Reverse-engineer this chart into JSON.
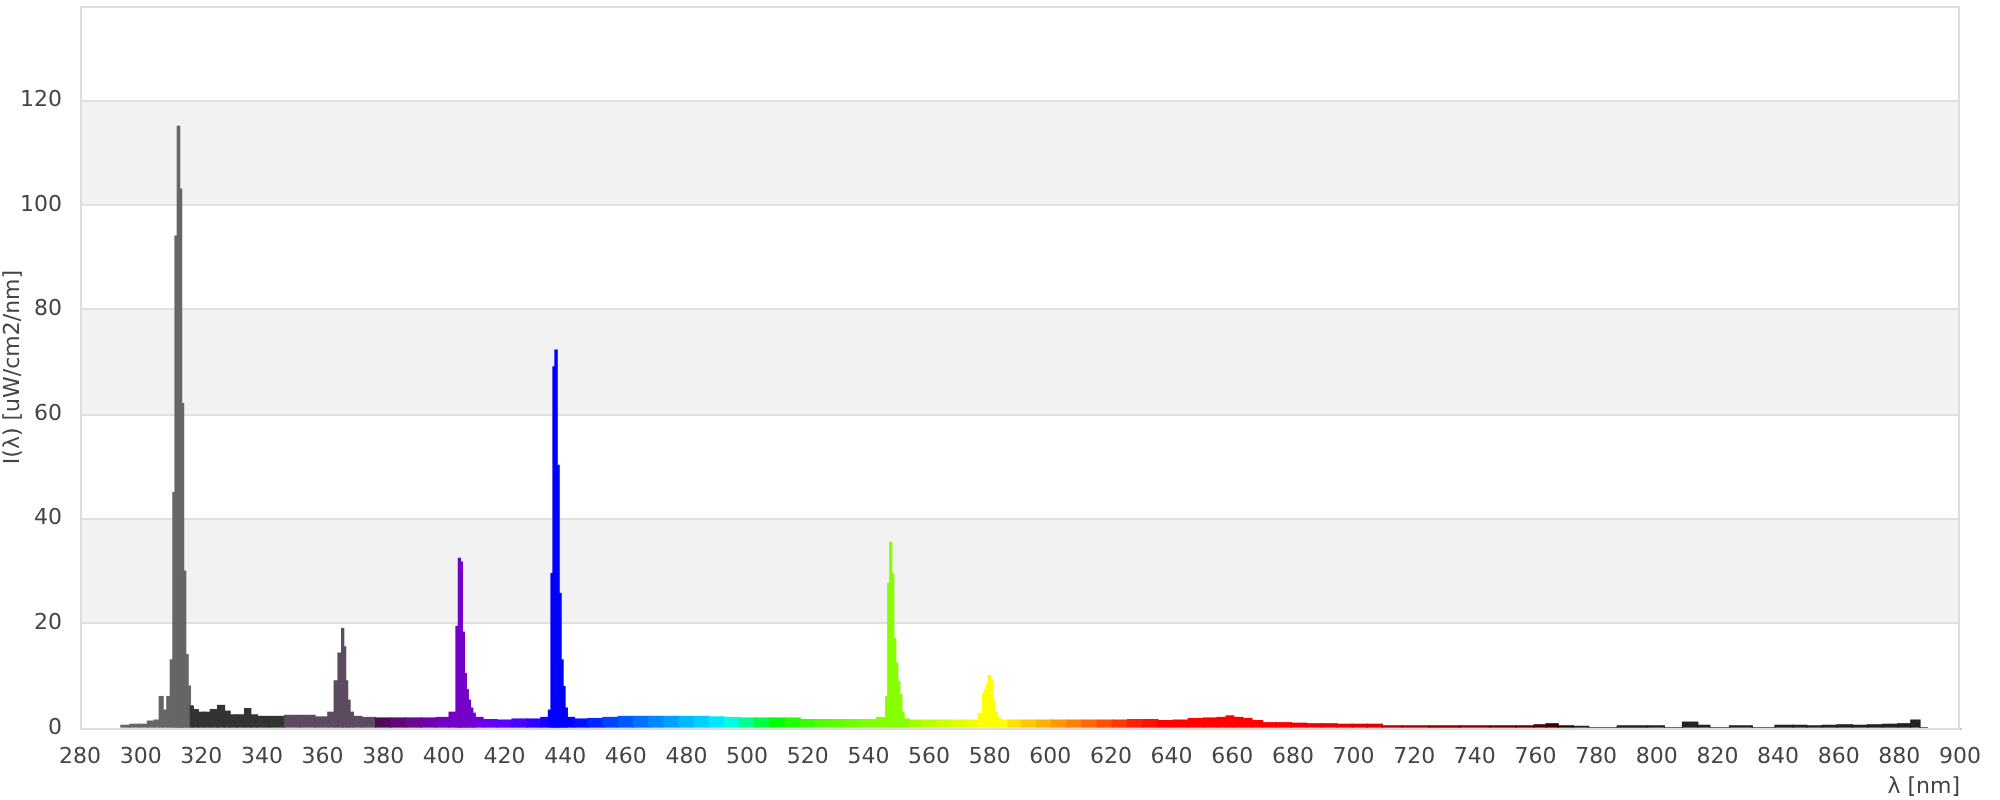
{
  "chart_data": {
    "type": "bar",
    "xlabel": "λ [nm]",
    "ylabel": "I(λ) [uW/cm2/nm]",
    "x": [
      295,
      298,
      301,
      303.5,
      305.5,
      306.8,
      308,
      309.3,
      310.3,
      311,
      311.7,
      312.5,
      313.2,
      313.8,
      314.5,
      315.2,
      316.1,
      316.7,
      318,
      320,
      322,
      324,
      326.8,
      328.5,
      330.5,
      333,
      335.6,
      337,
      340,
      345,
      350,
      355,
      360,
      363.5,
      364.2,
      366,
      366.6,
      367.3,
      367.9,
      368.6,
      369.5,
      370.8,
      375,
      380,
      385,
      390,
      395,
      400,
      403.5,
      404.5,
      405.1,
      405.8,
      406.4,
      407.1,
      407.7,
      408.4,
      409.1,
      409.9,
      410.8,
      415,
      420,
      425,
      430,
      434,
      435,
      435.7,
      436.3,
      437,
      437.7,
      438.3,
      439,
      439.6,
      440.3,
      441.1,
      445,
      450,
      455,
      460,
      465,
      470,
      475,
      480,
      485,
      490,
      495,
      500,
      505,
      510,
      515,
      520,
      525,
      530,
      535,
      540,
      545.3,
      546.1,
      546.7,
      547.4,
      548,
      548.7,
      549.3,
      550,
      550.7,
      551.3,
      552.2,
      555,
      560,
      565,
      570,
      575,
      577.5,
      577.9,
      578.6,
      579.3,
      579.9,
      580.6,
      581.2,
      582.1,
      583,
      584.1,
      588,
      593,
      598,
      603,
      608,
      613,
      618,
      623,
      628,
      633,
      638,
      643,
      648,
      653,
      657,
      659,
      662,
      665,
      668,
      672,
      677,
      682,
      687,
      692,
      697,
      702,
      707,
      712,
      720,
      730,
      740,
      750,
      757,
      762,
      765,
      770,
      775,
      780,
      794,
      800,
      805,
      812,
      815,
      820,
      828,
      835,
      843,
      847,
      852,
      857,
      862,
      867,
      872,
      877,
      882,
      885.6,
      888
    ],
    "values": [
      0.5,
      0.7,
      0.7,
      1.3,
      1.5,
      6,
      3.4,
      6,
      13,
      45,
      94,
      115,
      103,
      62,
      30,
      14,
      8,
      4.2,
      3.5,
      3,
      3,
      3.5,
      4.3,
      3.2,
      2.5,
      2.5,
      3.7,
      2.5,
      2.2,
      2.2,
      2.4,
      2.4,
      2.1,
      3,
      9,
      14.3,
      19,
      15.5,
      9,
      5.3,
      3,
      2.2,
      2,
      1.9,
      1.9,
      1.9,
      1.9,
      2,
      3,
      19.4,
      32.4,
      31.7,
      18.3,
      10.4,
      7.3,
      5.3,
      3.8,
      2.8,
      2,
      1.6,
      1.5,
      1.7,
      1.7,
      2,
      3.4,
      29.5,
      69,
      72.2,
      50.2,
      25.7,
      13,
      7.9,
      3.8,
      2,
      1.7,
      1.8,
      2,
      2.2,
      2.2,
      2.2,
      2.2,
      2.2,
      2.2,
      2.1,
      2,
      1.9,
      1.9,
      1.9,
      1.9,
      1.6,
      1.6,
      1.6,
      1.6,
      1.6,
      2,
      6,
      27.6,
      35.5,
      29.5,
      17.1,
      12.4,
      8.9,
      6.4,
      3,
      1.7,
      1.5,
      1.5,
      1.5,
      1.5,
      1.5,
      2.8,
      6.6,
      7.3,
      8.5,
      10,
      9.2,
      5.3,
      3,
      2,
      1.5,
      1.5,
      1.5,
      1.5,
      1.5,
      1.5,
      1.5,
      1.5,
      1.5,
      1.6,
      1.6,
      1.4,
      1.5,
      1.8,
      1.9,
      2,
      2.3,
      2,
      1.8,
      1.4,
      1,
      1,
      0.9,
      0.8,
      0.8,
      0.7,
      0.7,
      0.7,
      0.4,
      0.4,
      0.4,
      0.4,
      0.4,
      0.4,
      0.6,
      0.8,
      0.4,
      0.3,
      0,
      0.4,
      0.4,
      0,
      1.1,
      0.5,
      0,
      0.4,
      0,
      0.5,
      0.5,
      0.4,
      0.5,
      0.6,
      0.5,
      0.6,
      0.7,
      0.8,
      1.5,
      0
    ],
    "colors": [
      "#666666",
      "#666666",
      "#666666",
      "#666666",
      "#666666",
      "#666666",
      "#666666",
      "#666666",
      "#666666",
      "#666666",
      "#666666",
      "#666666",
      "#666666",
      "#666666",
      "#666666",
      "#666666",
      "#666666",
      "#333333",
      "#333333",
      "#333333",
      "#333333",
      "#333333",
      "#333333",
      "#333333",
      "#333333",
      "#333333",
      "#333333",
      "#333333",
      "#333333",
      "#333333",
      "#5c4b5e",
      "#5c4b5e",
      "#5c4b5e",
      "#5c4b5e",
      "#5c4b5e",
      "#5c4b5e",
      "#5c4b5e",
      "#5c4b5e",
      "#5c4b5e",
      "#5c4b5e",
      "#5c4b5e",
      "#5c4b5e",
      "#5c4b5e",
      "#520a58",
      "#5e0a72",
      "#680a8c",
      "#7000aa",
      "#7400c0",
      "#7400c8",
      "#7400c8",
      "#7400c8",
      "#7400c8",
      "#7400c8",
      "#7400c8",
      "#7400c8",
      "#7400c8",
      "#7400c8",
      "#7400c8",
      "#7000e0",
      "#6800f0",
      "#5a00ff",
      "#4800ff",
      "#3000ff",
      "#1800ff",
      "#0000ff",
      "#0000ff",
      "#0000ff",
      "#0000ff",
      "#0000ff",
      "#0000ff",
      "#0000ff",
      "#0000ff",
      "#0000ff",
      "#0000ff",
      "#0010ff",
      "#0028ff",
      "#0040ff",
      "#0058ff",
      "#0070ff",
      "#0088ff",
      "#00a0ff",
      "#00b8ff",
      "#00d0ff",
      "#00e8ff",
      "#00ffe0",
      "#00ff90",
      "#00ff40",
      "#00ff00",
      "#20ff00",
      "#38ff00",
      "#50ff00",
      "#60ff00",
      "#70ff00",
      "#80ff00",
      "#88ff00",
      "#88ff00",
      "#88ff00",
      "#88ff00",
      "#88ff00",
      "#88ff00",
      "#88ff00",
      "#88ff00",
      "#88ff00",
      "#88ff00",
      "#88ff00",
      "#a0ff00",
      "#b8ff00",
      "#ccff00",
      "#e0ff00",
      "#f0ff00",
      "#ffff00",
      "#ffff00",
      "#ffff00",
      "#ffff00",
      "#ffff00",
      "#ffff00",
      "#ffff00",
      "#ffff00",
      "#ffff00",
      "#ffff00",
      "#ffe000",
      "#ffc800",
      "#ffb000",
      "#ff9800",
      "#ff8000",
      "#ff6800",
      "#ff5000",
      "#ff3800",
      "#ff2000",
      "#ff1000",
      "#ff0000",
      "#ff0000",
      "#ff0000",
      "#ff0000",
      "#ff0000",
      "#ff0000",
      "#ff0000",
      "#ff0000",
      "#ff0000",
      "#ff0000",
      "#ff0000",
      "#ee0000",
      "#ee0000",
      "#ee0000",
      "#ee0000",
      "#dd0000",
      "#dd0000",
      "#b00000",
      "#a00000",
      "#900000",
      "#800000",
      "#700000",
      "#600000",
      "#500000",
      "#400000",
      "#300000",
      "#222222",
      "#222222",
      "#222222",
      "#222222",
      "#222222",
      "#222222",
      "#222222",
      "#222222",
      "#222222",
      "#222222",
      "#222222",
      "#222222",
      "#222222",
      "#222222",
      "#222222",
      "#222222",
      "#222222",
      "#222222",
      "#222222",
      "#222222",
      "#222222"
    ],
    "xlim": [
      280,
      900
    ],
    "xticks": [
      280,
      300,
      320,
      340,
      360,
      380,
      400,
      420,
      440,
      460,
      480,
      500,
      520,
      540,
      560,
      580,
      600,
      620,
      640,
      660,
      680,
      700,
      720,
      740,
      760,
      780,
      800,
      820,
      840,
      860,
      880,
      900
    ],
    "ylim": [
      0,
      138
    ],
    "yticks": [
      0,
      20,
      40,
      60,
      80,
      100,
      120
    ],
    "grid": "y"
  }
}
